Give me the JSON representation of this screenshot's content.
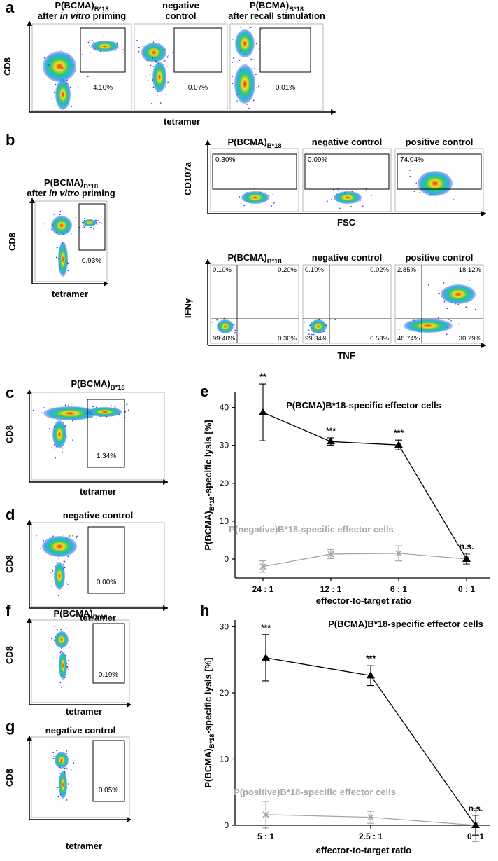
{
  "flow_panels": [
    {
      "letter": "a",
      "y_label": "CD8",
      "x_label": "tetramer",
      "plots": [
        {
          "title": [
            [
              {
                "text": "P(BCMA)"
              },
              {
                "text": "B*18",
                "sub": true
              }
            ],
            [
              {
                "text": "after "
              },
              {
                "text": "in vitro",
                "italic": true
              },
              {
                "text": " priming"
              }
            ]
          ],
          "gate_label": "4.10%"
        },
        {
          "title": [
            [
              {
                "text": "negative"
              }
            ],
            [
              {
                "text": "control"
              }
            ]
          ],
          "gate_label": "0.07%"
        },
        {
          "title": [
            [
              {
                "text": "P(BCMA)"
              },
              {
                "text": "B*18",
                "sub": true
              }
            ],
            [
              {
                "text": "after recall stimulation"
              }
            ]
          ],
          "gate_label": "0.01%"
        }
      ]
    },
    {
      "letter": "b",
      "y_label": "CD8",
      "x_label": "tetramer",
      "plots": [
        {
          "title": [
            [
              {
                "text": "P(BCMA)"
              },
              {
                "text": "B*18",
                "sub": true
              }
            ],
            [
              {
                "text": "after "
              },
              {
                "text": "in vitro",
                "italic": true
              },
              {
                "text": " priming"
              }
            ]
          ],
          "gate_label": "0.93%"
        }
      ]
    },
    {
      "y_label": "CD107a",
      "x_label": "FSC",
      "plots": [
        {
          "title": [
            [
              {
                "text": "P(BCMA)"
              },
              {
                "text": "B*18",
                "sub": true
              }
            ]
          ],
          "gate_label": "0.30%"
        },
        {
          "title": [
            [
              {
                "text": "negative control"
              }
            ]
          ],
          "gate_label": "0.09%"
        },
        {
          "title": [
            [
              {
                "text": "positive control"
              }
            ]
          ],
          "gate_label": "74.04%"
        }
      ]
    },
    {
      "y_label": "IFNγ",
      "x_label": "TNF",
      "plots": [
        {
          "title": [
            [
              {
                "text": "P(BCMA)"
              },
              {
                "text": "B*18",
                "sub": true
              }
            ]
          ],
          "quadrant_labels": [
            "0.10%",
            "0.20%",
            "99.40%",
            "0.30%"
          ]
        },
        {
          "title": [
            [
              {
                "text": "negative control"
              }
            ]
          ],
          "quadrant_labels": [
            "0.10%",
            "0.02%",
            "99.34%",
            "0.53%"
          ]
        },
        {
          "title": [
            [
              {
                "text": "positive control"
              }
            ]
          ],
          "quadrant_labels": [
            "2.85%",
            "18.12%",
            "48.74%",
            "30.29%"
          ]
        }
      ]
    },
    {
      "letter": "c",
      "y_label": "CD8",
      "x_label": "tetramer",
      "plots": [
        {
          "title": [
            [
              {
                "text": "P(BCMA)"
              },
              {
                "text": "B*18",
                "sub": true
              }
            ]
          ],
          "gate_label": "1.34%"
        }
      ]
    },
    {
      "letter": "d",
      "y_label": "CD8",
      "x_label": "tetramer",
      "plots": [
        {
          "title": [
            [
              {
                "text": "negative control"
              }
            ]
          ],
          "gate_label": "0.00%"
        }
      ]
    },
    {
      "letter": "f",
      "y_label": "CD8",
      "x_label": "tetramer",
      "plots": [
        {
          "title": [
            [
              {
                "text": "P(BCMA)"
              },
              {
                "text": "B*18",
                "sub": true
              }
            ]
          ],
          "gate_label": "0.19%"
        }
      ]
    },
    {
      "letter": "g",
      "y_label": "CD8",
      "x_label": "tetramer",
      "plots": [
        {
          "title": [
            [
              {
                "text": "negative control"
              }
            ]
          ],
          "gate_label": "0.05%"
        }
      ]
    }
  ],
  "chart_data": [
    {
      "type": "line",
      "panel_label": "e",
      "y_label": [
        {
          "text": "P(BCMA)"
        },
        {
          "text": "B*18",
          "sub": true
        },
        {
          "text": "-specific lysis [%]"
        }
      ],
      "x_label": "effector-to-target ratio",
      "categories": [
        "24 : 1",
        "12 : 1",
        "6 : 1",
        "0 : 1"
      ],
      "ylim": [
        -5,
        44
      ],
      "yticks": [
        0,
        10,
        20,
        30,
        40
      ],
      "series": [
        {
          "name": "P(BCMA)B*18-specific effector cells",
          "color": "#000000",
          "marker": "triangle",
          "values": [
            38.7,
            31,
            30.1,
            0
          ],
          "errors": [
            7.5,
            1,
            1.3,
            1.5
          ],
          "annotations": [
            "**",
            "***",
            "***",
            "n.s."
          ]
        },
        {
          "name": "P(negative)B*18-specific effector cells",
          "color": "#a6a6a6",
          "marker": "x",
          "values": [
            -2,
            1.3,
            1.5,
            0
          ],
          "errors": [
            1.5,
            1.2,
            2,
            1.2
          ]
        }
      ]
    },
    {
      "type": "line",
      "panel_label": "h",
      "y_label": [
        {
          "text": "P(BCMA)"
        },
        {
          "text": "B*18",
          "sub": true
        },
        {
          "text": "-specific lysis [%]"
        }
      ],
      "x_label": "effector-to-target ratio",
      "categories": [
        "5 : 1",
        "2.5 : 1",
        "0 : 1"
      ],
      "ylim": [
        0,
        31
      ],
      "yticks": [
        0,
        10,
        20,
        30
      ],
      "series": [
        {
          "name": "P(BCMA)B*18-specific effector cells",
          "color": "#000000",
          "marker": "triangle",
          "values": [
            25.3,
            22.6,
            0
          ],
          "errors": [
            3.5,
            1.5,
            1.5
          ],
          "annotations": [
            "***",
            "***",
            "n.s."
          ]
        },
        {
          "name": "P(positive)B*18-specific effector cells",
          "color": "#a6a6a6",
          "marker": "x",
          "values": [
            1.6,
            1.2,
            0
          ],
          "errors": [
            2,
            0.9,
            2.5
          ]
        }
      ]
    }
  ]
}
